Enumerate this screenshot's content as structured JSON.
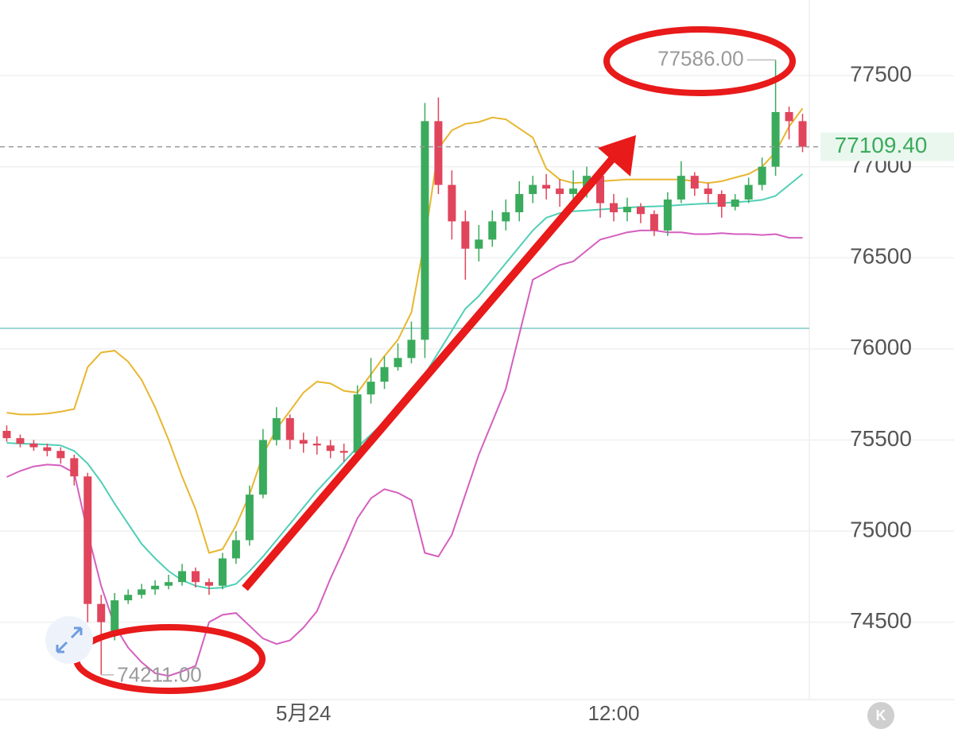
{
  "chart_data": {
    "type": "candlestick",
    "categories": [
      null,
      null,
      null,
      null,
      null,
      null,
      null,
      null,
      null,
      null,
      null,
      null,
      null,
      null,
      null,
      null,
      null,
      null,
      null,
      null,
      null,
      null,
      "5月24",
      null,
      null,
      null,
      null,
      null,
      null,
      null,
      null,
      null,
      null,
      null,
      null,
      null,
      null,
      null,
      null,
      null,
      null,
      null,
      null,
      null,
      null,
      "12:00",
      null,
      null,
      null,
      null,
      null,
      null,
      null,
      null,
      null,
      null,
      null,
      null,
      null,
      null
    ],
    "open": [
      75550,
      75510,
      75480,
      75460,
      75440,
      75400,
      75300,
      74600,
      74450,
      74620,
      74650,
      74680,
      74700,
      74720,
      74780,
      74720,
      74700,
      74850,
      74950,
      75200,
      75500,
      75620,
      75500,
      75480,
      75470,
      75440,
      75430,
      75750,
      75820,
      75900,
      75950,
      76050,
      77250,
      76900,
      76700,
      76550,
      76600,
      76700,
      76750,
      76850,
      76900,
      76880,
      76850,
      76880,
      76950,
      76800,
      76750,
      76780,
      76740,
      76650,
      76820,
      76950,
      76880,
      76850,
      76780,
      76820,
      76900,
      77000,
      77300,
      77250
    ],
    "high": [
      75580,
      75530,
      75500,
      75480,
      75460,
      75420,
      75320,
      74650,
      74660,
      74680,
      74710,
      74730,
      74760,
      74820,
      74800,
      74740,
      74880,
      75000,
      75250,
      75560,
      75680,
      75640,
      75540,
      75520,
      75500,
      75480,
      75800,
      75950,
      75960,
      76030,
      76150,
      77350,
      77380,
      76980,
      76760,
      76680,
      76760,
      76820,
      76920,
      76950,
      76960,
      76930,
      76980,
      77000,
      76970,
      76850,
      76830,
      76800,
      76760,
      76860,
      77030,
      76970,
      76910,
      76870,
      76850,
      76940,
      77050,
      77586,
      77330,
      77290
    ],
    "low": [
      75490,
      75460,
      75440,
      75410,
      75370,
      75250,
      74500,
      74211,
      74400,
      74600,
      74630,
      74650,
      74680,
      74700,
      74690,
      74650,
      74680,
      74820,
      74920,
      75180,
      75470,
      75450,
      75430,
      75420,
      75400,
      75380,
      75400,
      75700,
      75780,
      75880,
      75920,
      75950,
      76850,
      76600,
      76380,
      76480,
      76560,
      76650,
      76700,
      76800,
      76820,
      76780,
      76800,
      76830,
      76720,
      76700,
      76700,
      76690,
      76620,
      76620,
      76800,
      76840,
      76800,
      76720,
      76760,
      76800,
      76870,
      76950,
      77150,
      77080
    ],
    "close": [
      75510,
      75480,
      75460,
      75440,
      75400,
      75300,
      74600,
      74500,
      74620,
      74650,
      74680,
      74700,
      74720,
      74780,
      74720,
      74700,
      74850,
      74950,
      75200,
      75500,
      75620,
      75500,
      75480,
      75470,
      75440,
      75430,
      75750,
      75820,
      75900,
      75950,
      76050,
      77250,
      76900,
      76700,
      76550,
      76600,
      76700,
      76750,
      76850,
      76900,
      76880,
      76850,
      76880,
      76950,
      76800,
      76750,
      76780,
      76740,
      76650,
      76820,
      76950,
      76880,
      76850,
      76780,
      76820,
      76900,
      77000,
      77300,
      77250,
      77109.4
    ],
    "up_color": "#3aab5c",
    "down_color": "#e0455b",
    "overlays": [
      {
        "color": "#e8b730",
        "values": [
          75650,
          75640,
          75640,
          75645,
          75655,
          75670,
          75900,
          75980,
          75990,
          75930,
          75830,
          75680,
          75500,
          75300,
          75120,
          74880,
          74900,
          75030,
          75200,
          75420,
          75560,
          75660,
          75760,
          75820,
          75810,
          75770,
          75760,
          75860,
          75960,
          76050,
          76200,
          76600,
          77100,
          77200,
          77235,
          77245,
          77270,
          77260,
          77210,
          77160,
          76990,
          76930,
          76910,
          76915,
          76920,
          76925,
          76930,
          76930,
          76930,
          76930,
          76930,
          76920,
          76910,
          76920,
          76940,
          76960,
          77000,
          77080,
          77220,
          77320
        ]
      },
      {
        "color": "#4fcfb5",
        "values": [
          75484,
          75480,
          75478,
          75475,
          75470,
          75440,
          75370,
          75270,
          75150,
          75040,
          74930,
          74850,
          74780,
          74730,
          74700,
          74685,
          74690,
          74710,
          74780,
          74860,
          74950,
          75040,
          75130,
          75220,
          75300,
          75380,
          75460,
          75530,
          75600,
          75650,
          75740,
          75860,
          75980,
          76100,
          76220,
          76290,
          76380,
          76470,
          76560,
          76650,
          76720,
          76745,
          76755,
          76760,
          76765,
          76770,
          76775,
          76780,
          76782,
          76785,
          76790,
          76795,
          76798,
          76800,
          76805,
          76810,
          76818,
          76840,
          76900,
          76960
        ]
      },
      {
        "color": "#d45fbf",
        "values": [
          75297,
          75330,
          75355,
          75365,
          75360,
          75320,
          74990,
          74700,
          74480,
          74360,
          74280,
          74220,
          74205,
          74230,
          74260,
          74500,
          74540,
          74550,
          74480,
          74410,
          74380,
          74400,
          74470,
          74560,
          74740,
          74900,
          75070,
          75180,
          75230,
          75210,
          75170,
          74880,
          74860,
          74980,
          75200,
          75420,
          75600,
          75780,
          76080,
          76380,
          76420,
          76460,
          76480,
          76540,
          76600,
          76620,
          76640,
          76650,
          76650,
          76640,
          76640,
          76630,
          76630,
          76635,
          76630,
          76630,
          76625,
          76630,
          76610,
          76610
        ]
      }
    ],
    "ylim": [
      74075,
      77915
    ],
    "yticks": [
      74500,
      75000,
      75500,
      76000,
      76500,
      77000,
      77500
    ],
    "grid": true,
    "hline": 76113,
    "last_price": {
      "value": 77109.4,
      "label": "77109.40"
    },
    "annotations": [
      {
        "value": 77586,
        "label": "77586.00",
        "index": 57
      },
      {
        "value": 74211,
        "label": "74211.00",
        "index": 7
      }
    ],
    "badge": "K"
  }
}
